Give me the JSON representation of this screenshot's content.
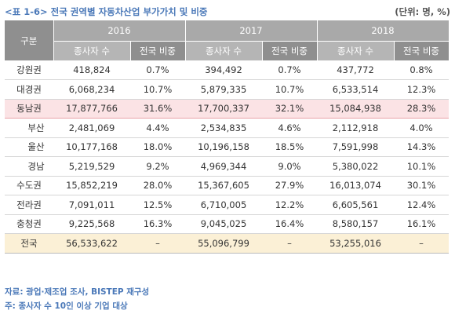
{
  "caption": {
    "title": "<표 1-6> 전국 권역별 자동차산업 부가가치 및 비중",
    "unit": "(단위: 명, %)"
  },
  "table": {
    "corner_header": "구분",
    "years": [
      "2016",
      "2017",
      "2018"
    ],
    "sub_headers": {
      "count": "종사자 수",
      "share": "전국 비중"
    },
    "rows": [
      {
        "region": "강원권",
        "v2016": "418,824",
        "s2016": "0.7%",
        "v2017": "394,492",
        "s2017": "0.7%",
        "v2018": "437,772",
        "s2018": "0.8%"
      },
      {
        "region": "대경권",
        "v2016": "6,068,234",
        "s2016": "10.7%",
        "v2017": "5,879,335",
        "s2017": "10.7%",
        "v2018": "6,533,514",
        "s2018": "12.3%"
      },
      {
        "region": "동남권",
        "v2016": "17,877,766",
        "s2016": "31.6%",
        "v2017": "17,700,337",
        "s2017": "32.1%",
        "v2018": "15,084,938",
        "s2018": "28.3%"
      },
      {
        "region": "부산",
        "v2016": "2,481,069",
        "s2016": "4.4%",
        "v2017": "2,534,835",
        "s2017": "4.6%",
        "v2018": "2,112,918",
        "s2018": "4.0%"
      },
      {
        "region": "울산",
        "v2016": "10,177,168",
        "s2016": "18.0%",
        "v2017": "10,196,158",
        "s2017": "18.5%",
        "v2018": "7,591,998",
        "s2018": "14.3%"
      },
      {
        "region": "경남",
        "v2016": "5,219,529",
        "s2016": "9.2%",
        "v2017": "4,969,344",
        "s2017": "9.0%",
        "v2018": "5,380,022",
        "s2018": "10.1%"
      },
      {
        "region": "수도권",
        "v2016": "15,852,219",
        "s2016": "28.0%",
        "v2017": "15,367,605",
        "s2017": "27.9%",
        "v2018": "16,013,074",
        "s2018": "30.1%"
      },
      {
        "region": "전라권",
        "v2016": "7,091,011",
        "s2016": "12.5%",
        "v2017": "6,710,005",
        "s2017": "12.2%",
        "v2018": "6,605,561",
        "s2018": "12.4%"
      },
      {
        "region": "충청권",
        "v2016": "9,225,568",
        "s2016": "16.3%",
        "v2017": "9,045,025",
        "s2017": "16.4%",
        "v2018": "8,580,157",
        "s2018": "16.1%"
      },
      {
        "region": "전국",
        "v2016": "56,533,622",
        "s2016": "–",
        "v2017": "55,096,799",
        "s2017": "–",
        "v2018": "53,255,016",
        "s2018": "–"
      }
    ]
  },
  "footer": {
    "source": "자료: 광업·제조업 조사, BISTEP 재구성",
    "note": "주: 종사자 수 10인 이상 기업 대상"
  },
  "colors": {
    "caption": "#4a78b8",
    "header_bg": "#a9a9a9",
    "highlight_row": "#fbe3e5",
    "total_row": "#fbf0d6"
  }
}
